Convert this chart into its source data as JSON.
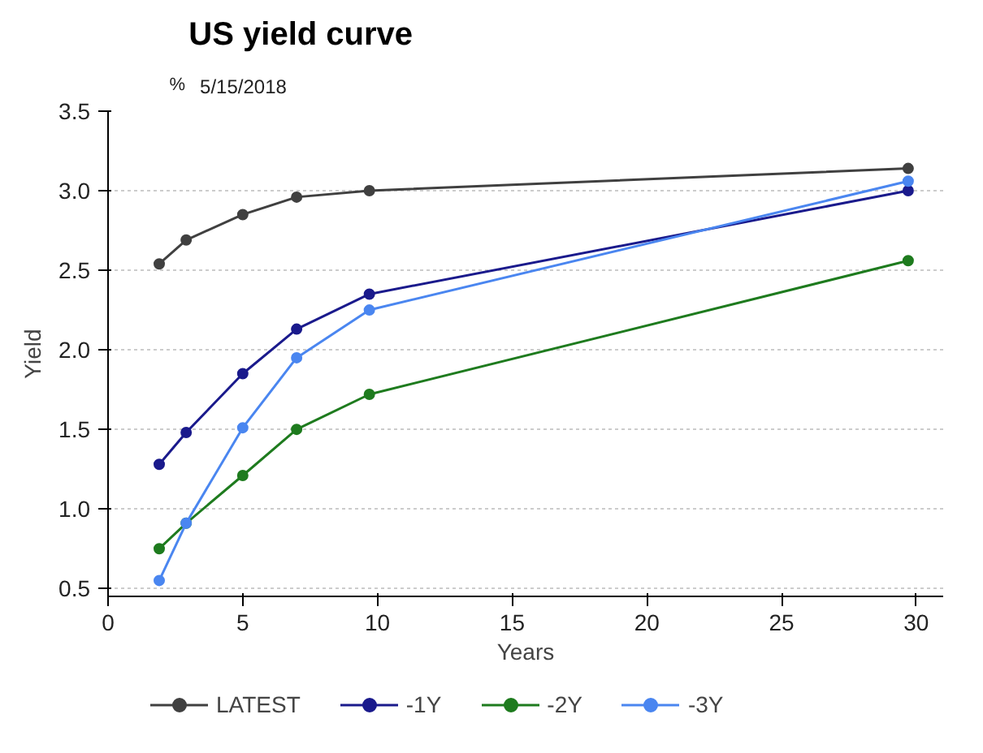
{
  "chart_data": {
    "type": "line",
    "title": "US yield curve",
    "subtitle": "5/15/2018",
    "xlabel": "Years",
    "ylabel": "Yield",
    "annotations": [
      "%"
    ],
    "x": [
      1.9,
      2.9,
      5.0,
      7.0,
      9.7,
      29.7
    ],
    "series": [
      {
        "name": "LATEST",
        "color": "#404040",
        "values": [
          2.54,
          2.69,
          2.85,
          2.96,
          3.0,
          3.14
        ]
      },
      {
        "name": "-1Y",
        "color": "#1a1a8c",
        "values": [
          1.28,
          1.48,
          1.85,
          2.13,
          2.35,
          3.0
        ]
      },
      {
        "name": "-2Y",
        "color": "#1e7b1e",
        "values": [
          0.75,
          0.91,
          1.21,
          1.5,
          1.72,
          2.56
        ]
      },
      {
        "name": "-3Y",
        "color": "#4a86f0",
        "values": [
          0.55,
          0.91,
          1.51,
          1.95,
          2.25,
          3.06
        ]
      }
    ],
    "xlim": [
      0,
      31
    ],
    "xticks": [
      0,
      5,
      10,
      15,
      20,
      25,
      30
    ],
    "ylim": [
      0.45,
      3.5
    ],
    "yticks": [
      {
        "value": 0.5,
        "label": "0.5"
      },
      {
        "value": 1,
        "label": "1.0"
      },
      {
        "value": 1.5,
        "label": "1.5"
      },
      {
        "value": 2,
        "label": "2.0"
      },
      {
        "value": 2.5,
        "label": "2.5"
      },
      {
        "value": 3,
        "label": "3.0"
      },
      {
        "value": 3.5,
        "label": "3.5"
      }
    ],
    "grid": "y",
    "legend": "bottom",
    "marker": "circle",
    "line_style": "solid"
  }
}
